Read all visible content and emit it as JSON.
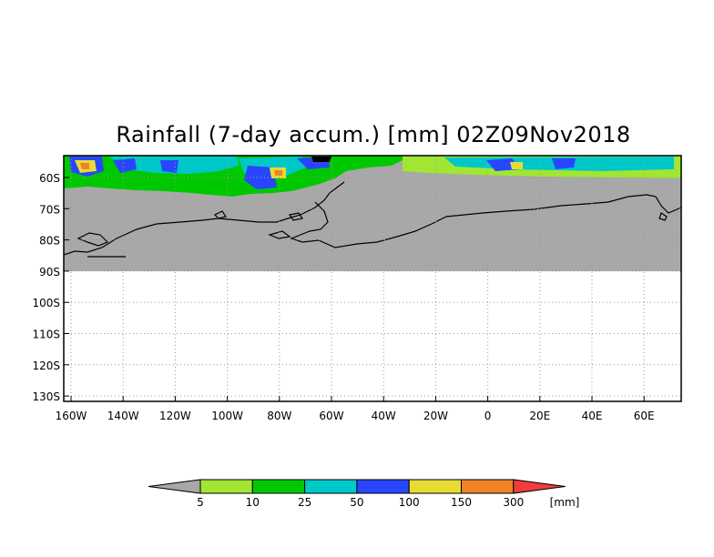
{
  "title": "Rainfall (7-day accum.) [mm] 02Z09Nov2018",
  "map": {
    "lat_labels": [
      "60S",
      "70S",
      "80S",
      "90S",
      "100S",
      "110S",
      "120S",
      "130S"
    ],
    "lon_labels": [
      "160W",
      "140W",
      "120W",
      "100W",
      "80W",
      "60W",
      "40W",
      "20W",
      "0",
      "20E",
      "40E",
      "60E"
    ],
    "no_data_color": "#a8a8a8",
    "grid_style": "dotted"
  },
  "colorbar": {
    "labels": [
      "5",
      "10",
      "25",
      "50",
      "100",
      "150",
      "300"
    ],
    "unit": "[mm]",
    "colors": [
      "#a8a8a8",
      "#a0e632",
      "#00c800",
      "#00c8c8",
      "#2846ff",
      "#e6dc32",
      "#f08228",
      "#f03c3c"
    ]
  }
}
